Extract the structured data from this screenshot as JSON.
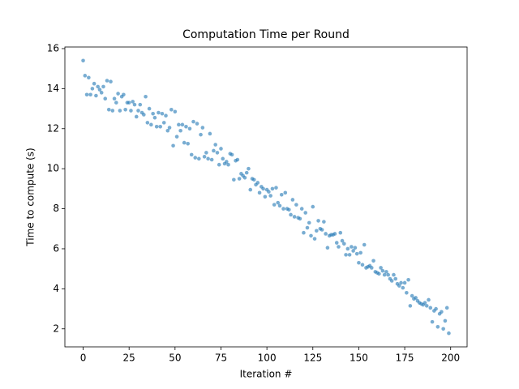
{
  "chart_data": {
    "type": "scatter",
    "title": "Computation Time per Round",
    "x_label": "Iteration #",
    "y_label": "Time to compute (s)",
    "color": "#1f77b4",
    "alpha": 0.6,
    "xlim": [
      -9.95,
      208.95
    ],
    "ylim": [
      1.1,
      16.08
    ],
    "xticks": [
      0,
      25,
      50,
      75,
      100,
      125,
      150,
      175,
      200
    ],
    "yticks": [
      2,
      4,
      6,
      8,
      10,
      12,
      14,
      16
    ],
    "x": [
      0,
      1,
      2,
      3,
      4,
      5,
      6,
      7,
      8,
      9,
      10,
      11,
      12,
      13,
      14,
      15,
      16,
      17,
      18,
      19,
      20,
      21,
      22,
      23,
      24,
      25,
      26,
      27,
      28,
      29,
      30,
      31,
      32,
      33,
      34,
      35,
      36,
      37,
      38,
      39,
      40,
      41,
      42,
      43,
      44,
      45,
      46,
      47,
      48,
      49,
      50,
      51,
      52,
      53,
      54,
      55,
      56,
      57,
      58,
      59,
      60,
      61,
      62,
      63,
      64,
      65,
      66,
      67,
      68,
      69,
      70,
      71,
      72,
      73,
      74,
      75,
      76,
      77,
      78,
      79,
      80,
      81,
      82,
      83,
      84,
      85,
      86,
      87,
      88,
      89,
      90,
      91,
      92,
      93,
      94,
      95,
      96,
      97,
      98,
      99,
      100,
      101,
      102,
      103,
      104,
      105,
      106,
      107,
      108,
      109,
      110,
      111,
      112,
      113,
      114,
      115,
      116,
      117,
      118,
      119,
      120,
      121,
      122,
      123,
      124,
      125,
      126,
      127,
      128,
      129,
      130,
      131,
      132,
      133,
      134,
      135,
      136,
      137,
      138,
      139,
      140,
      141,
      142,
      143,
      144,
      145,
      146,
      147,
      148,
      149,
      150,
      151,
      152,
      153,
      154,
      155,
      156,
      157,
      158,
      159,
      160,
      161,
      162,
      163,
      164,
      165,
      166,
      167,
      168,
      169,
      170,
      171,
      172,
      173,
      174,
      175,
      176,
      177,
      178,
      179,
      180,
      181,
      182,
      183,
      184,
      185,
      186,
      187,
      188,
      189,
      190,
      191,
      192,
      193,
      194,
      195,
      196,
      197,
      198,
      199
    ],
    "values": [
      15.4,
      14.65,
      13.7,
      14.55,
      13.7,
      14.0,
      14.25,
      13.65,
      14.1,
      13.95,
      13.8,
      14.1,
      13.5,
      14.4,
      12.95,
      14.35,
      12.9,
      13.5,
      13.3,
      13.75,
      12.9,
      13.6,
      13.7,
      12.95,
      13.3,
      13.3,
      12.9,
      13.35,
      13.2,
      12.6,
      12.9,
      13.2,
      12.8,
      12.7,
      13.6,
      12.3,
      13.0,
      12.2,
      12.75,
      12.55,
      12.1,
      12.8,
      12.1,
      12.75,
      12.3,
      12.65,
      11.9,
      12.05,
      12.95,
      11.15,
      12.85,
      11.6,
      12.2,
      11.9,
      12.2,
      11.3,
      12.1,
      11.25,
      12.0,
      10.7,
      12.35,
      10.55,
      12.25,
      10.5,
      11.7,
      12.05,
      10.6,
      10.8,
      10.5,
      11.75,
      10.45,
      10.9,
      11.2,
      10.8,
      10.2,
      11.0,
      10.5,
      10.25,
      10.35,
      10.2,
      10.75,
      10.7,
      9.45,
      10.4,
      10.45,
      9.5,
      9.75,
      9.65,
      9.55,
      9.8,
      10.0,
      8.95,
      9.5,
      9.45,
      9.2,
      9.3,
      8.8,
      9.1,
      9.0,
      8.6,
      8.95,
      8.85,
      8.65,
      9.0,
      8.2,
      9.05,
      8.3,
      8.15,
      8.7,
      8.0,
      8.8,
      8.0,
      7.95,
      7.7,
      8.45,
      7.6,
      8.2,
      7.55,
      7.5,
      8.0,
      6.8,
      7.8,
      7.05,
      7.3,
      6.65,
      8.1,
      6.5,
      6.9,
      7.4,
      7.0,
      6.95,
      7.35,
      6.75,
      6.05,
      6.65,
      6.7,
      6.7,
      6.75,
      6.3,
      6.1,
      6.8,
      6.4,
      6.25,
      5.7,
      6.0,
      5.7,
      6.1,
      5.9,
      6.05,
      5.75,
      5.3,
      5.8,
      5.2,
      6.2,
      5.05,
      5.1,
      5.15,
      5.05,
      5.4,
      4.85,
      4.8,
      4.75,
      5.05,
      4.9,
      4.7,
      4.85,
      4.7,
      4.5,
      4.4,
      4.7,
      4.5,
      4.25,
      4.15,
      4.3,
      4.05,
      4.3,
      3.8,
      4.45,
      3.15,
      3.65,
      3.5,
      3.55,
      3.4,
      3.3,
      3.25,
      3.2,
      3.3,
      3.15,
      3.45,
      3.05,
      2.35,
      2.9,
      3.0,
      2.1,
      2.75,
      2.85,
      2.0,
      2.4,
      3.05,
      1.78
    ]
  }
}
